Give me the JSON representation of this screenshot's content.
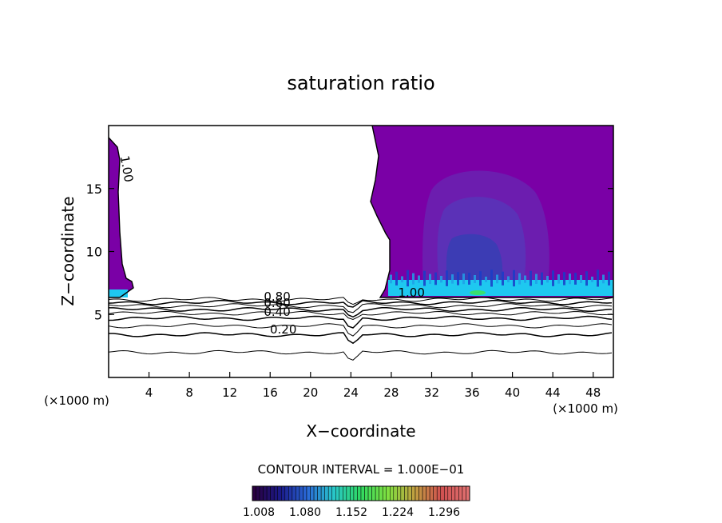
{
  "chart_data": {
    "type": "heatmap",
    "title": "saturation ratio",
    "xlabel": "X−coordinate",
    "ylabel": "Z−coordinate",
    "x_unit": "(×1000 m)",
    "x_unit_right": "(×1000 m)",
    "xlim": [
      0,
      50
    ],
    "ylim": [
      0,
      20
    ],
    "x_ticks": [
      4,
      8,
      12,
      16,
      20,
      24,
      28,
      32,
      36,
      40,
      44,
      48
    ],
    "y_ticks": [
      5,
      10,
      15
    ],
    "contour_interval_text": "CONTOUR INTERVAL = 1.000E−01",
    "contour_labels": [
      {
        "text": "0.80",
        "x": 16.7,
        "z": 6.1
      },
      {
        "text": "0.60",
        "x": 16.7,
        "z": 5.6
      },
      {
        "text": "0.40",
        "x": 16.7,
        "z": 4.9
      },
      {
        "text": "0.20",
        "x": 17.3,
        "z": 3.5
      },
      {
        "text": "1.00",
        "x": 30.0,
        "z": 6.4
      },
      {
        "text": "1.00",
        "x": 1.4,
        "z": 16.5
      }
    ],
    "contour_lines": [
      {
        "level": 0.1,
        "z": 2.0
      },
      {
        "level": 0.2,
        "z": 3.4
      },
      {
        "level": 0.3,
        "z": 4.1
      },
      {
        "level": 0.4,
        "z": 4.7
      },
      {
        "level": 0.5,
        "z": 5.1
      },
      {
        "level": 0.6,
        "z": 5.4
      },
      {
        "level": 0.7,
        "z": 5.7
      },
      {
        "level": 0.8,
        "z": 5.95
      },
      {
        "level": 0.9,
        "z": 6.2
      }
    ],
    "colorbar": {
      "ticks": [
        "1.008",
        "1.080",
        "1.152",
        "1.224",
        "1.296"
      ],
      "colors": [
        "#2a0040",
        "#1a1a8a",
        "#2a6ad8",
        "#28c8c8",
        "#30d860",
        "#80e040",
        "#c0a040",
        "#d05050",
        "#e07070"
      ]
    },
    "regions": {
      "supersaturated_color": "#7a00a6",
      "deeper_color_1": "#6a20b0",
      "deeper_color_2": "#5a34b8",
      "core_color": "#3c3cb4",
      "base_band_color": "#1ec8f0",
      "highlight_color": "#38e070"
    }
  }
}
